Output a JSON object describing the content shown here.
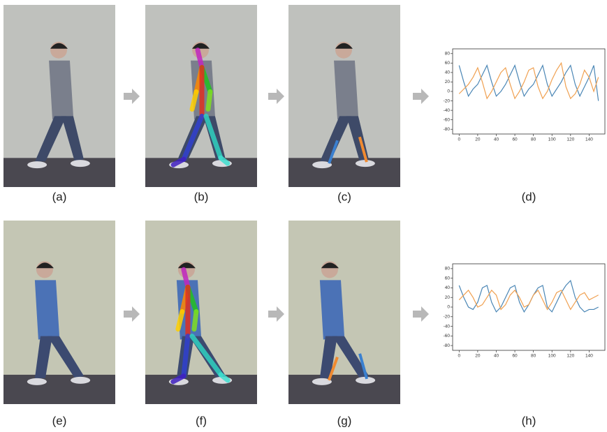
{
  "labels": [
    "(a)",
    "(b)",
    "(c)",
    "(d)",
    "(e)",
    "(f)",
    "(g)",
    "(h)"
  ],
  "chart_data": [
    {
      "type": "line",
      "x": [
        0,
        5,
        10,
        15,
        20,
        25,
        30,
        35,
        40,
        45,
        50,
        55,
        60,
        65,
        70,
        75,
        80,
        85,
        90,
        95,
        100,
        105,
        110,
        115,
        120,
        125,
        130,
        135,
        140,
        145,
        150
      ],
      "series": [
        {
          "color": "#4a86b5",
          "values": [
            55,
            20,
            -10,
            5,
            15,
            35,
            55,
            20,
            -10,
            0,
            15,
            35,
            55,
            20,
            -10,
            5,
            15,
            35,
            55,
            15,
            -10,
            5,
            20,
            40,
            55,
            15,
            -10,
            10,
            30,
            55,
            -20
          ]
        },
        {
          "color": "#f0a050",
          "values": [
            -5,
            5,
            15,
            30,
            50,
            20,
            -15,
            0,
            20,
            40,
            50,
            15,
            -15,
            0,
            20,
            45,
            50,
            10,
            -15,
            0,
            25,
            45,
            60,
            10,
            -15,
            -5,
            15,
            45,
            30,
            0,
            30
          ]
        }
      ],
      "xlim": [
        -7,
        157
      ],
      "ylim": [
        -90,
        90
      ],
      "xticks": [
        0,
        20,
        40,
        60,
        80,
        100,
        120,
        140
      ],
      "yticks": [
        -80,
        -60,
        -40,
        -20,
        0,
        20,
        40,
        60,
        80
      ]
    },
    {
      "type": "line",
      "x": [
        0,
        5,
        10,
        15,
        20,
        25,
        30,
        35,
        40,
        45,
        50,
        55,
        60,
        65,
        70,
        75,
        80,
        85,
        90,
        95,
        100,
        105,
        110,
        115,
        120,
        125,
        130,
        135,
        140,
        145,
        150
      ],
      "series": [
        {
          "color": "#4a86b5",
          "values": [
            45,
            20,
            0,
            -5,
            10,
            40,
            45,
            10,
            -10,
            0,
            20,
            40,
            45,
            10,
            -10,
            5,
            25,
            40,
            45,
            0,
            -10,
            10,
            30,
            45,
            55,
            20,
            0,
            -10,
            -5,
            -5,
            0
          ]
        },
        {
          "color": "#f0a050",
          "values": [
            15,
            25,
            35,
            20,
            0,
            5,
            20,
            35,
            25,
            -5,
            5,
            25,
            35,
            20,
            0,
            5,
            25,
            35,
            15,
            -5,
            10,
            30,
            35,
            15,
            -5,
            10,
            25,
            30,
            15,
            20,
            25
          ]
        }
      ],
      "xlim": [
        -7,
        157
      ],
      "ylim": [
        -90,
        90
      ],
      "xticks": [
        0,
        20,
        40,
        60,
        80,
        100,
        120,
        140
      ],
      "yticks": [
        -80,
        -60,
        -40,
        -20,
        0,
        20,
        40,
        60,
        80
      ]
    }
  ]
}
